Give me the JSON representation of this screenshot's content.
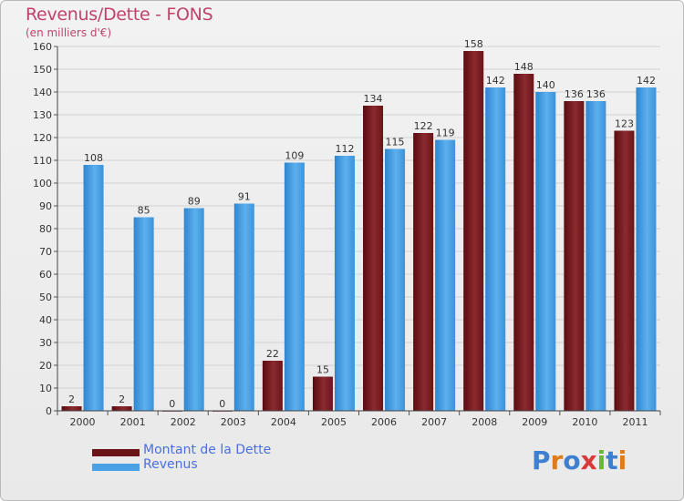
{
  "header": {
    "title": "Revenus/Dette - FONS",
    "subtitle": "(en milliers d'€)"
  },
  "colors": {
    "dette": "#7a1a1f",
    "revenus": "#4aa1e3",
    "title": "#c0436b"
  },
  "logo": {
    "text": "Proxiti",
    "letter_colors": [
      "#3d7fd0",
      "#e07b1a",
      "#3d7fd0",
      "#d83a3a",
      "#6ab82e",
      "#3d7fd0",
      "#e07b1a"
    ]
  },
  "chart_data": {
    "type": "bar",
    "title": "Revenus/Dette - FONS",
    "subtitle": "(en milliers d'€)",
    "xlabel": "",
    "ylabel": "",
    "ylim": [
      0,
      160
    ],
    "yticks": [
      0,
      10,
      20,
      30,
      40,
      50,
      60,
      70,
      80,
      90,
      100,
      110,
      120,
      130,
      140,
      150,
      160
    ],
    "grid": true,
    "legend_position": "bottom-left",
    "categories": [
      "2000",
      "2001",
      "2002",
      "2003",
      "2004",
      "2005",
      "2006",
      "2007",
      "2008",
      "2009",
      "2010",
      "2011"
    ],
    "series": [
      {
        "name": "Montant de la Dette",
        "values": [
          2,
          2,
          0,
          0,
          22,
          15,
          134,
          122,
          158,
          148,
          136,
          123
        ]
      },
      {
        "name": "Revenus",
        "values": [
          108,
          85,
          89,
          91,
          109,
          112,
          115,
          119,
          142,
          140,
          136,
          142
        ]
      }
    ]
  }
}
